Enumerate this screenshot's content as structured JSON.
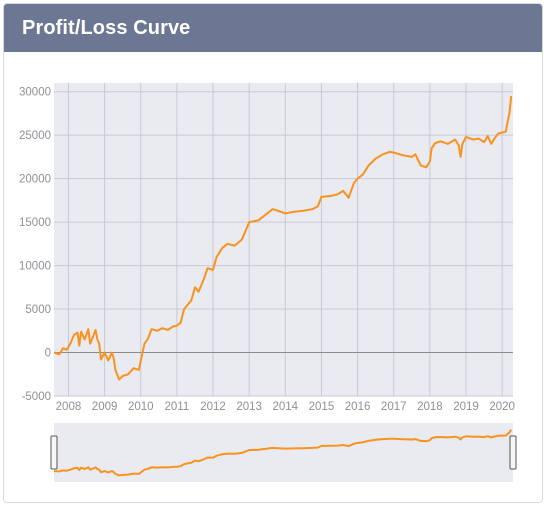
{
  "header": {
    "title": "Profit/Loss Curve"
  },
  "colors": {
    "header_bg": "#6c7793",
    "plot_bg": "#eaeaf1",
    "grid": "#c9c9d3",
    "line": "#f7931e",
    "zero_line": "#8b8b8b",
    "axis_text": "#8d9099"
  },
  "chart_data": {
    "type": "line",
    "title": "",
    "xlabel": "",
    "ylabel": "",
    "xlim": [
      2007.6,
      2020.3
    ],
    "ylim": [
      -5000,
      31000
    ],
    "grid": true,
    "legend": "none",
    "x_ticks": [
      "2008",
      "2009",
      "2010",
      "2011",
      "2012",
      "2013",
      "2014",
      "2015",
      "2016",
      "2017",
      "2018",
      "2019",
      "2020"
    ],
    "y_ticks": [
      "30000",
      "25000",
      "20000",
      "15000",
      "10000",
      "5000",
      "0",
      "-5000"
    ],
    "series": [
      {
        "x": [
          2007.6,
          2007.75,
          2007.85,
          2007.95,
          2008.05,
          2008.15,
          2008.25,
          2008.3,
          2008.35,
          2008.45,
          2008.55,
          2008.6,
          2008.65,
          2008.75,
          2008.8,
          2008.85,
          2008.9,
          2009.0,
          2009.1,
          2009.15,
          2009.2,
          2009.25,
          2009.3,
          2009.4,
          2009.5,
          2009.65,
          2009.8,
          2009.95,
          2010.0,
          2010.1,
          2010.2,
          2010.3,
          2010.45,
          2010.6,
          2010.75,
          2010.9,
          2011.0,
          2011.1,
          2011.2,
          2011.3,
          2011.4,
          2011.5,
          2011.6,
          2011.75,
          2011.85,
          2012.0,
          2012.1,
          2012.25,
          2012.4,
          2012.6,
          2012.8,
          2012.9,
          2013.0,
          2013.25,
          2013.5,
          2013.65,
          2013.8,
          2014.0,
          2014.25,
          2014.5,
          2014.75,
          2014.9,
          2015.0,
          2015.25,
          2015.45,
          2015.6,
          2015.75,
          2015.9,
          2016.0,
          2016.15,
          2016.3,
          2016.5,
          2016.7,
          2016.9,
          2017.0,
          2017.25,
          2017.5,
          2017.6,
          2017.75,
          2017.9,
          2018.0,
          2018.05,
          2018.15,
          2018.3,
          2018.5,
          2018.7,
          2018.8,
          2018.85,
          2018.9,
          2019.0,
          2019.2,
          2019.35,
          2019.5,
          2019.6,
          2019.7,
          2019.8,
          2019.9,
          2020.0,
          2020.1,
          2020.15,
          2020.2,
          2020.25
        ],
        "y": [
          0,
          -200,
          500,
          300,
          1000,
          2000,
          2300,
          800,
          2400,
          1500,
          2700,
          1000,
          1500,
          2600,
          1500,
          1000,
          -800,
          0,
          -900,
          -500,
          0,
          -600,
          -2000,
          -3100,
          -2700,
          -2500,
          -1800,
          -2000,
          -1000,
          1000,
          1600,
          2700,
          2500,
          2800,
          2600,
          3000,
          3100,
          3400,
          5000,
          5500,
          6000,
          7500,
          7000,
          8500,
          9700,
          9500,
          11000,
          12000,
          12500,
          12300,
          13000,
          14000,
          15000,
          15200,
          16000,
          16500,
          16300,
          16000,
          16200,
          16300,
          16500,
          16800,
          17900,
          18000,
          18200,
          18600,
          17800,
          19500,
          20000,
          20500,
          21500,
          22300,
          22800,
          23100,
          23000,
          22700,
          22500,
          22800,
          21500,
          21300,
          22000,
          23500,
          24100,
          24300,
          24000,
          24500,
          23800,
          22500,
          24000,
          24800,
          24500,
          24600,
          24200,
          24900,
          24000,
          24700,
          25200,
          25300,
          25400,
          26500,
          27500,
          29500
        ]
      }
    ]
  }
}
